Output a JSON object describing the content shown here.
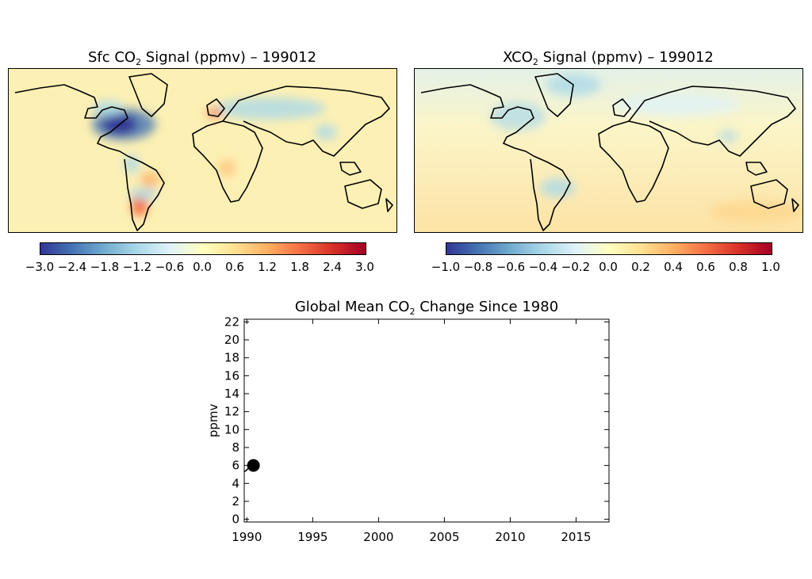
{
  "panels": {
    "sfc_map": {
      "title_prefix": "Sfc CO",
      "title_sub": "2",
      "title_suffix": " Signal (ppmv) – 199012",
      "colorbar_ticks": [
        "−3.0",
        "−2.4",
        "−1.8",
        "−1.2",
        "−0.6",
        "0.0",
        "0.6",
        "1.2",
        "1.8",
        "2.4",
        "3.0"
      ],
      "colorbar_range": [
        -3.0,
        3.0
      ]
    },
    "xco2_map": {
      "title_prefix": "XCO",
      "title_sub": "2",
      "title_suffix": " Signal (ppmv) – 199012",
      "colorbar_ticks": [
        "−1.0",
        "−0.8",
        "−0.6",
        "−0.4",
        "−0.2",
        "0.0",
        "0.2",
        "0.4",
        "0.6",
        "0.8",
        "1.0"
      ],
      "colorbar_range": [
        -1.0,
        1.0
      ]
    }
  },
  "colors": {
    "colormap": [
      "#313695",
      "#4575b4",
      "#74add1",
      "#abd9e9",
      "#e0f3f8",
      "#ffffbf",
      "#fee090",
      "#fdae61",
      "#f46d43",
      "#d73027",
      "#a50026"
    ],
    "sfc_background": "#fdf0b4",
    "xco2_background": "#fde9b0"
  },
  "chart_data": {
    "type": "line",
    "title_prefix": "Global Mean CO",
    "title_sub": "2",
    "title_suffix": " Change Since 1980",
    "xlabel": "",
    "ylabel": "ppmv",
    "xlim": [
      1989.8,
      2017.5
    ],
    "ylim": [
      -0.3,
      22.3
    ],
    "xticks": [
      1990,
      1995,
      2000,
      2005,
      2010,
      2015
    ],
    "yticks": [
      0,
      2,
      4,
      6,
      8,
      10,
      12,
      14,
      16,
      18,
      20,
      22
    ],
    "series": [
      {
        "x": [
          1989.8,
          1990.0,
          1990.2,
          1990.4,
          1990.5,
          1990.6
        ],
        "y": [
          5.3,
          5.5,
          5.9,
          6.0,
          6.0,
          5.9
        ]
      }
    ],
    "marker": {
      "x": 1990.5,
      "y": 6.0
    }
  }
}
